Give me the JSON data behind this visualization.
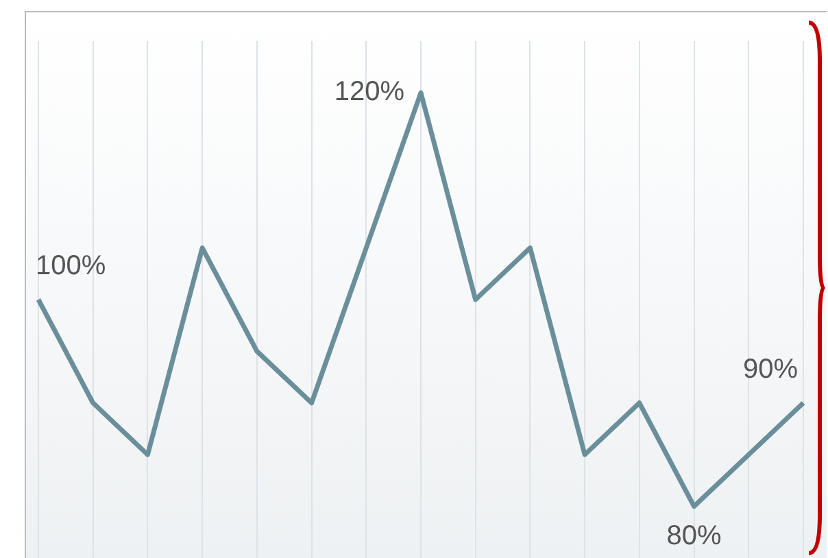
{
  "chart_data": {
    "type": "line",
    "categories": [
      null,
      null,
      null,
      null,
      null,
      null,
      null,
      null,
      null,
      null,
      null,
      null,
      null,
      null,
      null
    ],
    "series": [
      {
        "color": "#6b8e9b",
        "values": [
          100,
          90,
          85,
          105,
          95,
          90,
          105,
          120,
          100,
          105,
          85,
          90,
          80,
          85,
          90
        ],
        "value_labels": [
          "100%",
          null,
          null,
          null,
          null,
          null,
          null,
          "120%",
          null,
          null,
          null,
          null,
          "80%",
          null,
          "90%"
        ]
      }
    ],
    "grid": "x",
    "tick_labels": false,
    "legend": false,
    "marker": "none",
    "line_style": "solid"
  }
}
